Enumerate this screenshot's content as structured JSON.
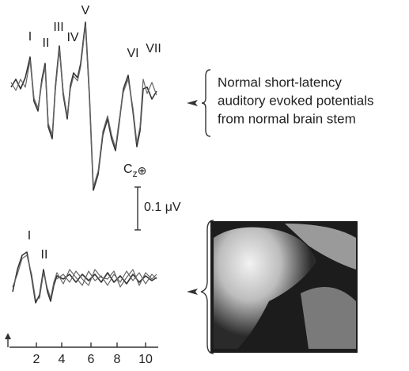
{
  "top_trace": {
    "peaks": [
      "I",
      "II",
      "III",
      "IV",
      "V",
      "VI",
      "VII"
    ],
    "electrode": {
      "base": "C",
      "subscript": "z",
      "symbol": "⊕"
    }
  },
  "caption": [
    "Normal short-latency",
    "auditory evoked potentials",
    "from normal brain stem"
  ],
  "scale_bar": "0.1 μV",
  "bottom_trace": {
    "peaks": [
      "I",
      "II"
    ]
  },
  "x_axis": {
    "ticks": [
      "2",
      "4",
      "6",
      "8",
      "10"
    ]
  }
}
